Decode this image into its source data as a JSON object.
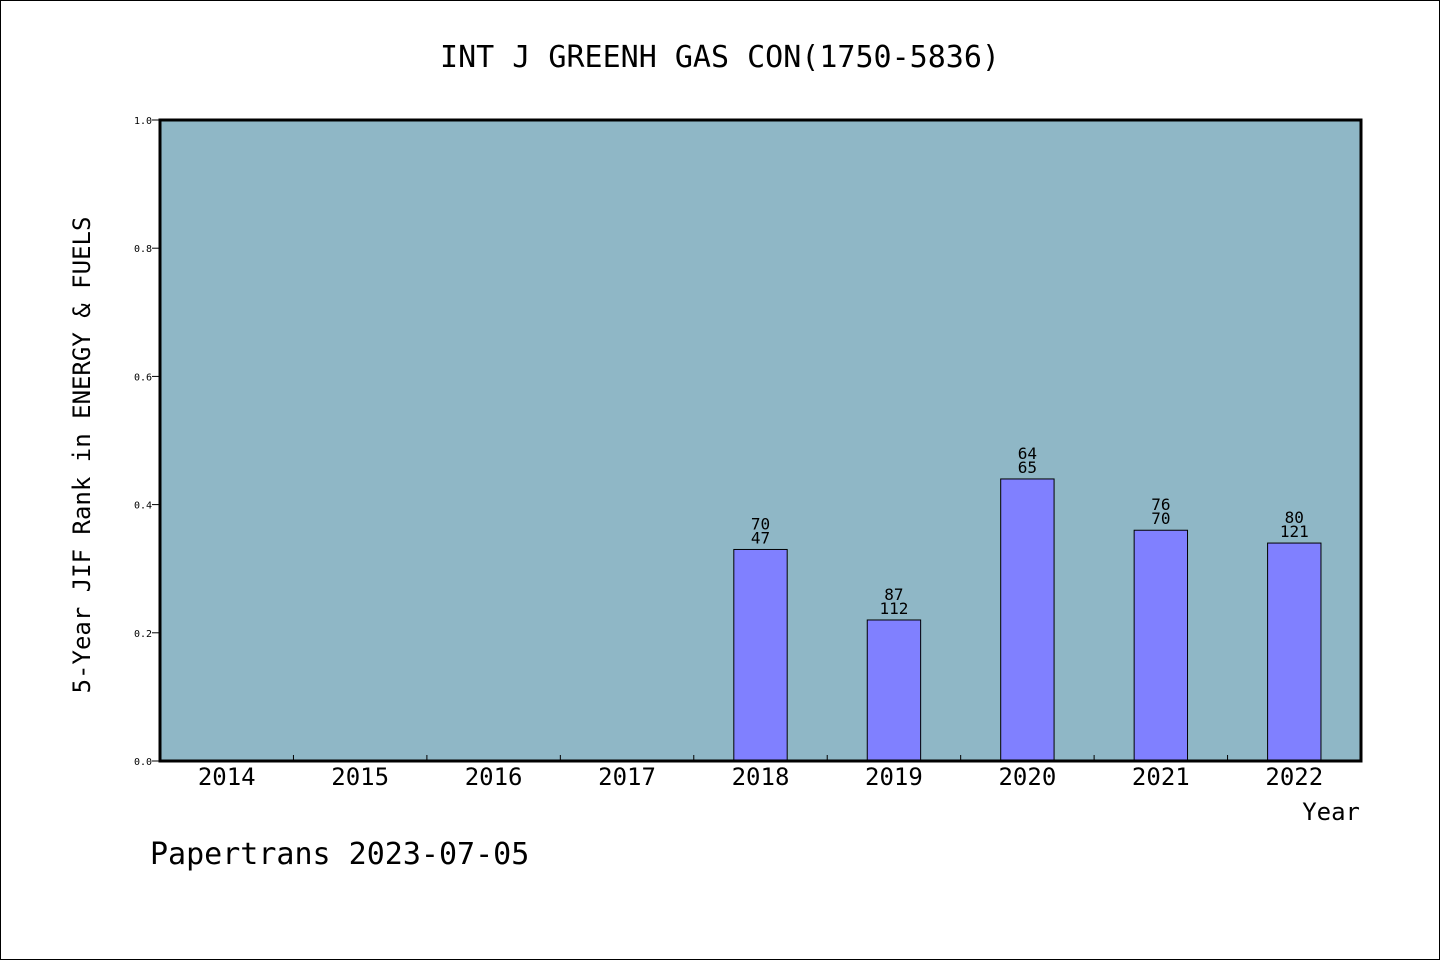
{
  "chart_data": {
    "type": "bar",
    "title": "INT J GREENH GAS CON(1750-5836)",
    "xlabel": "Year",
    "ylabel": "5-Year JIF Rank in ENERGY & FUELS",
    "ylim": [
      0,
      1.0
    ],
    "yticks": [
      "0.0",
      "0.2",
      "0.4",
      "0.6",
      "0.8",
      "1.0"
    ],
    "categories": [
      "2014",
      "2015",
      "2016",
      "2017",
      "2018",
      "2019",
      "2020",
      "2021",
      "2022"
    ],
    "values": [
      null,
      null,
      null,
      null,
      0.33,
      0.22,
      0.44,
      0.36,
      0.34
    ],
    "bar_labels_top": [
      "",
      "",
      "",
      "",
      "70",
      "87",
      "64",
      "76",
      "80"
    ],
    "bar_labels_bottom": [
      "",
      "",
      "",
      "",
      "47",
      "112",
      "65",
      "70",
      "121"
    ],
    "grid": false,
    "colors": {
      "plot_bg": "#8fb7c6",
      "bar": "#8080ff"
    }
  },
  "footer": "Papertrans 2023-07-05"
}
